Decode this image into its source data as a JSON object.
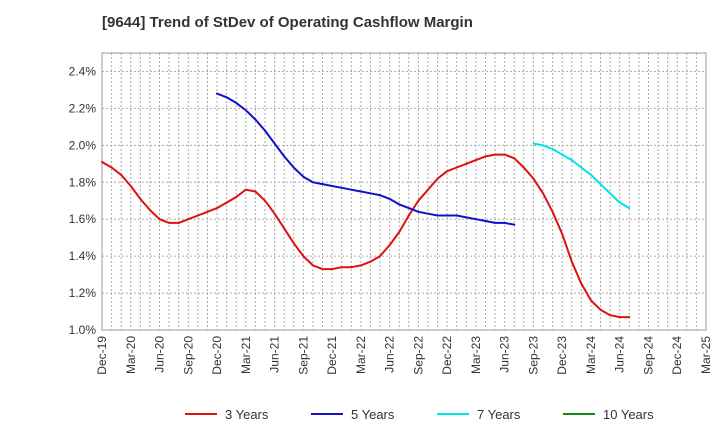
{
  "chart_data": {
    "type": "line",
    "title": "[9644]  Trend of StDev of Operating Cashflow Margin",
    "xlabel": "",
    "ylabel": "",
    "x_ticks": [
      "Dec-19",
      "Mar-20",
      "Jun-20",
      "Sep-20",
      "Dec-20",
      "Mar-21",
      "Jun-21",
      "Sep-21",
      "Dec-21",
      "Mar-22",
      "Jun-22",
      "Sep-22",
      "Dec-22",
      "Mar-23",
      "Jun-23",
      "Sep-23",
      "Dec-23",
      "Mar-24",
      "Jun-24",
      "Sep-24",
      "Dec-24",
      "Mar-25"
    ],
    "y_ticks": [
      "2.4%",
      "2.2%",
      "2.0%",
      "1.8%",
      "1.6%",
      "1.4%",
      "1.2%",
      "1.0%"
    ],
    "ylim": [
      1.0,
      2.5
    ],
    "y_unit": "%",
    "grid": true,
    "legend_position": "bottom",
    "series": [
      {
        "name": "3 Years",
        "color": "#dd1111",
        "points": [
          [
            "Dec-19",
            1.91
          ],
          [
            "Jan-20",
            1.88
          ],
          [
            "Feb-20",
            1.84
          ],
          [
            "Mar-20",
            1.78
          ],
          [
            "Apr-20",
            1.71
          ],
          [
            "May-20",
            1.65
          ],
          [
            "Jun-20",
            1.6
          ],
          [
            "Jul-20",
            1.58
          ],
          [
            "Aug-20",
            1.58
          ],
          [
            "Sep-20",
            1.6
          ],
          [
            "Oct-20",
            1.62
          ],
          [
            "Nov-20",
            1.64
          ],
          [
            "Dec-20",
            1.66
          ],
          [
            "Jan-21",
            1.69
          ],
          [
            "Feb-21",
            1.72
          ],
          [
            "Mar-21",
            1.76
          ],
          [
            "Apr-21",
            1.75
          ],
          [
            "May-21",
            1.7
          ],
          [
            "Jun-21",
            1.63
          ],
          [
            "Jul-21",
            1.55
          ],
          [
            "Aug-21",
            1.47
          ],
          [
            "Sep-21",
            1.4
          ],
          [
            "Oct-21",
            1.35
          ],
          [
            "Nov-21",
            1.33
          ],
          [
            "Dec-21",
            1.33
          ],
          [
            "Jan-22",
            1.34
          ],
          [
            "Feb-22",
            1.34
          ],
          [
            "Mar-22",
            1.35
          ],
          [
            "Apr-22",
            1.37
          ],
          [
            "May-22",
            1.4
          ],
          [
            "Jun-22",
            1.46
          ],
          [
            "Jul-22",
            1.53
          ],
          [
            "Aug-22",
            1.62
          ],
          [
            "Sep-22",
            1.7
          ],
          [
            "Oct-22",
            1.76
          ],
          [
            "Nov-22",
            1.82
          ],
          [
            "Dec-22",
            1.86
          ],
          [
            "Jan-23",
            1.88
          ],
          [
            "Feb-23",
            1.9
          ],
          [
            "Mar-23",
            1.92
          ],
          [
            "Apr-23",
            1.94
          ],
          [
            "May-23",
            1.95
          ],
          [
            "Jun-23",
            1.95
          ],
          [
            "Jul-23",
            1.93
          ],
          [
            "Aug-23",
            1.88
          ],
          [
            "Sep-23",
            1.82
          ],
          [
            "Oct-23",
            1.74
          ],
          [
            "Nov-23",
            1.64
          ],
          [
            "Dec-23",
            1.52
          ],
          [
            "Jan-24",
            1.37
          ],
          [
            "Feb-24",
            1.25
          ],
          [
            "Mar-24",
            1.16
          ],
          [
            "Apr-24",
            1.11
          ],
          [
            "May-24",
            1.08
          ],
          [
            "Jun-24",
            1.07
          ],
          [
            "Jul-24",
            1.07
          ]
        ]
      },
      {
        "name": "5 Years",
        "color": "#1111cc",
        "points": [
          [
            "Dec-20",
            2.28
          ],
          [
            "Jan-21",
            2.26
          ],
          [
            "Feb-21",
            2.23
          ],
          [
            "Mar-21",
            2.19
          ],
          [
            "Apr-21",
            2.14
          ],
          [
            "May-21",
            2.08
          ],
          [
            "Jun-21",
            2.01
          ],
          [
            "Jul-21",
            1.94
          ],
          [
            "Aug-21",
            1.88
          ],
          [
            "Sep-21",
            1.83
          ],
          [
            "Oct-21",
            1.8
          ],
          [
            "Nov-21",
            1.79
          ],
          [
            "Dec-21",
            1.78
          ],
          [
            "Jan-22",
            1.77
          ],
          [
            "Feb-22",
            1.76
          ],
          [
            "Mar-22",
            1.75
          ],
          [
            "Apr-22",
            1.74
          ],
          [
            "May-22",
            1.73
          ],
          [
            "Jun-22",
            1.71
          ],
          [
            "Jul-22",
            1.68
          ],
          [
            "Aug-22",
            1.66
          ],
          [
            "Sep-22",
            1.64
          ],
          [
            "Oct-22",
            1.63
          ],
          [
            "Nov-22",
            1.62
          ],
          [
            "Dec-22",
            1.62
          ],
          [
            "Jan-23",
            1.62
          ],
          [
            "Feb-23",
            1.61
          ],
          [
            "Mar-23",
            1.6
          ],
          [
            "Apr-23",
            1.59
          ],
          [
            "May-23",
            1.58
          ],
          [
            "Jun-23",
            1.58
          ],
          [
            "Jul-23",
            1.57
          ]
        ]
      },
      {
        "name": "7 Years",
        "color": "#00e5e5",
        "points": [
          [
            "Sep-23",
            2.01
          ],
          [
            "Oct-23",
            2.0
          ],
          [
            "Nov-23",
            1.98
          ],
          [
            "Dec-23",
            1.95
          ],
          [
            "Jan-24",
            1.92
          ],
          [
            "Feb-24",
            1.88
          ],
          [
            "Mar-24",
            1.84
          ],
          [
            "Apr-24",
            1.79
          ],
          [
            "May-24",
            1.74
          ],
          [
            "Jun-24",
            1.69
          ],
          [
            "Jul-24",
            1.66
          ]
        ]
      },
      {
        "name": "10 Years",
        "color": "#118811",
        "points": []
      }
    ]
  }
}
